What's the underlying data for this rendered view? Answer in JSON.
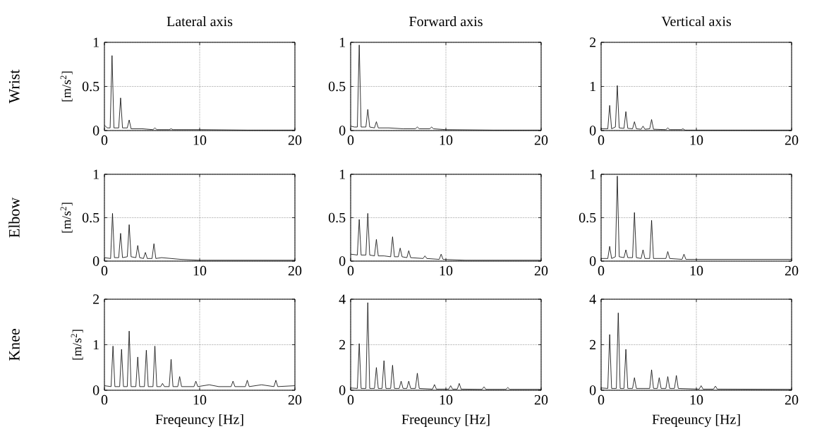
{
  "chart_data": [
    {
      "type": "line",
      "title": "Lateral axis",
      "annotations": [
        "Wrist"
      ],
      "ylabel": "[m/s$^{2}$]",
      "color": "#000000",
      "xlim": [
        0,
        20
      ],
      "xticks": [
        0,
        10,
        20
      ],
      "ylim": [
        0,
        1
      ],
      "yticks": [
        0,
        0.5,
        1
      ],
      "grid": true,
      "x": [
        0,
        0.3,
        0.6,
        0.8,
        1.0,
        1.5,
        1.7,
        1.9,
        2.4,
        2.6,
        2.8,
        4,
        5.1,
        5.3,
        5.5,
        6.8,
        7,
        7.2,
        10,
        15,
        20
      ],
      "values": [
        0.06,
        0.03,
        0.03,
        0.85,
        0.03,
        0.03,
        0.37,
        0.03,
        0.03,
        0.12,
        0.02,
        0.02,
        0.01,
        0.03,
        0.01,
        0.01,
        0.02,
        0.01,
        0.01,
        0.005,
        0.005
      ]
    },
    {
      "type": "line",
      "title": "Forward axis",
      "color": "#000000",
      "xlim": [
        0,
        20
      ],
      "xticks": [
        0,
        10,
        20
      ],
      "ylim": [
        0,
        1
      ],
      "yticks": [
        0,
        0.5,
        1
      ],
      "grid": true,
      "x": [
        0,
        0.4,
        0.7,
        0.9,
        1.1,
        1.6,
        1.8,
        2.0,
        2.5,
        2.7,
        2.9,
        4,
        5.5,
        6.8,
        7,
        7.2,
        8.3,
        8.5,
        8.7,
        10,
        15,
        20
      ],
      "values": [
        0.05,
        0.04,
        0.04,
        0.97,
        0.04,
        0.04,
        0.24,
        0.04,
        0.03,
        0.1,
        0.03,
        0.03,
        0.02,
        0.02,
        0.04,
        0.02,
        0.02,
        0.04,
        0.02,
        0.01,
        0.005,
        0.005
      ]
    },
    {
      "type": "line",
      "title": "Vertical axis",
      "color": "#000000",
      "xlim": [
        0,
        20
      ],
      "xticks": [
        0,
        10,
        20
      ],
      "ylim": [
        0,
        2
      ],
      "yticks": [
        0,
        1,
        2
      ],
      "grid": true,
      "x": [
        0,
        0.7,
        0.9,
        1.1,
        1.5,
        1.7,
        1.9,
        2.4,
        2.6,
        2.8,
        3.3,
        3.5,
        3.7,
        4.2,
        4.4,
        4.6,
        5.1,
        5.3,
        5.5,
        6.8,
        7,
        7.2,
        8.4,
        8.6,
        8.8,
        10,
        15,
        20
      ],
      "values": [
        0.04,
        0.04,
        0.57,
        0.04,
        0.08,
        1.02,
        0.06,
        0.05,
        0.43,
        0.05,
        0.04,
        0.2,
        0.04,
        0.03,
        0.1,
        0.03,
        0.04,
        0.25,
        0.03,
        0.02,
        0.06,
        0.02,
        0.02,
        0.04,
        0.01,
        0.01,
        0.01,
        0.01
      ]
    },
    {
      "type": "line",
      "annotations": [
        "Elbow"
      ],
      "ylabel": "[m/s$^{2}$]",
      "color": "#000000",
      "xlim": [
        0,
        20
      ],
      "xticks": [
        0,
        10,
        20
      ],
      "ylim": [
        0,
        1
      ],
      "yticks": [
        0,
        0.5,
        1
      ],
      "grid": true,
      "x": [
        0,
        0.65,
        0.85,
        1.05,
        1.5,
        1.7,
        1.9,
        2.4,
        2.6,
        2.8,
        3.3,
        3.5,
        3.7,
        4.1,
        4.3,
        4.5,
        5.0,
        5.2,
        5.4,
        6,
        8,
        10,
        15,
        20
      ],
      "values": [
        0.04,
        0.03,
        0.55,
        0.04,
        0.04,
        0.32,
        0.04,
        0.05,
        0.42,
        0.05,
        0.04,
        0.18,
        0.04,
        0.03,
        0.1,
        0.03,
        0.03,
        0.2,
        0.03,
        0.04,
        0.02,
        0.01,
        0.01,
        0.01
      ]
    },
    {
      "type": "line",
      "color": "#000000",
      "xlim": [
        0,
        20
      ],
      "xticks": [
        0,
        10,
        20
      ],
      "ylim": [
        0,
        1
      ],
      "yticks": [
        0,
        0.5,
        1
      ],
      "grid": true,
      "x": [
        0,
        0.7,
        0.9,
        1.1,
        1.6,
        1.8,
        2.0,
        2.5,
        2.7,
        2.9,
        3.5,
        4.2,
        4.4,
        4.6,
        5.0,
        5.2,
        5.4,
        5.9,
        6.1,
        6.3,
        7.6,
        7.8,
        8.0,
        9.3,
        9.5,
        9.7,
        12,
        15,
        20
      ],
      "values": [
        0.08,
        0.07,
        0.48,
        0.07,
        0.07,
        0.55,
        0.07,
        0.06,
        0.25,
        0.06,
        0.06,
        0.05,
        0.28,
        0.05,
        0.05,
        0.15,
        0.05,
        0.04,
        0.12,
        0.04,
        0.03,
        0.06,
        0.03,
        0.02,
        0.08,
        0.02,
        0.01,
        0.01,
        0.01
      ]
    },
    {
      "type": "line",
      "color": "#000000",
      "xlim": [
        0,
        20
      ],
      "xticks": [
        0,
        10,
        20
      ],
      "ylim": [
        0,
        1
      ],
      "yticks": [
        0,
        0.5,
        1
      ],
      "grid": true,
      "x": [
        0,
        0.7,
        0.9,
        1.1,
        1.5,
        1.7,
        1.9,
        2.4,
        2.6,
        2.8,
        3.3,
        3.5,
        3.7,
        4.2,
        4.4,
        4.6,
        5.1,
        5.3,
        5.5,
        6.8,
        7.0,
        7.2,
        8.5,
        8.7,
        8.9,
        10,
        15,
        20
      ],
      "values": [
        0.03,
        0.03,
        0.17,
        0.03,
        0.05,
        0.98,
        0.05,
        0.04,
        0.13,
        0.04,
        0.04,
        0.56,
        0.04,
        0.03,
        0.13,
        0.03,
        0.03,
        0.47,
        0.03,
        0.03,
        0.11,
        0.03,
        0.02,
        0.08,
        0.02,
        0.02,
        0.02,
        0.02
      ]
    },
    {
      "type": "line",
      "annotations": [
        "Knee"
      ],
      "ylabel": "[m/s$^{2}$]",
      "xlabel": "Freqeuncy [Hz]",
      "color": "#000000",
      "xlim": [
        0,
        20
      ],
      "xticks": [
        0,
        10,
        20
      ],
      "ylim": [
        0,
        2
      ],
      "yticks": [
        0,
        1,
        2
      ],
      "grid": true,
      "x": [
        0,
        0.7,
        0.9,
        1.1,
        1.6,
        1.8,
        2.0,
        2.4,
        2.6,
        2.8,
        3.3,
        3.5,
        3.7,
        4.2,
        4.4,
        4.6,
        5.1,
        5.3,
        5.5,
        5.9,
        6.1,
        6.3,
        6.8,
        7.0,
        7.2,
        7.7,
        7.9,
        8.1,
        9.4,
        9.6,
        9.8,
        11,
        12,
        13.3,
        13.5,
        13.7,
        14.8,
        15,
        15.2,
        16.5,
        17.8,
        18,
        18.2,
        20
      ],
      "values": [
        0.1,
        0.08,
        0.97,
        0.08,
        0.08,
        0.9,
        0.08,
        0.08,
        1.3,
        0.08,
        0.08,
        0.73,
        0.08,
        0.08,
        0.88,
        0.08,
        0.08,
        0.97,
        0.08,
        0.08,
        0.15,
        0.08,
        0.08,
        0.68,
        0.08,
        0.08,
        0.3,
        0.08,
        0.08,
        0.2,
        0.08,
        0.12,
        0.08,
        0.08,
        0.2,
        0.08,
        0.08,
        0.22,
        0.08,
        0.12,
        0.08,
        0.22,
        0.08,
        0.1
      ]
    },
    {
      "type": "line",
      "xlabel": "Freqeuncy [Hz]",
      "color": "#000000",
      "xlim": [
        0,
        20
      ],
      "xticks": [
        0,
        10,
        20
      ],
      "ylim": [
        0,
        4
      ],
      "yticks": [
        0,
        2,
        4
      ],
      "grid": true,
      "x": [
        0,
        0.7,
        0.9,
        1.1,
        1.6,
        1.8,
        2.0,
        2.5,
        2.7,
        2.9,
        3.3,
        3.5,
        3.7,
        4.2,
        4.4,
        4.6,
        5.1,
        5.3,
        5.5,
        5.9,
        6.1,
        6.3,
        6.8,
        7.0,
        7.2,
        8.6,
        8.8,
        9.0,
        10.3,
        10.5,
        10.7,
        11.2,
        11.4,
        11.6,
        13.8,
        14,
        14.2,
        16.3,
        16.5,
        16.7,
        20
      ],
      "values": [
        0.1,
        0.08,
        2.05,
        0.08,
        0.08,
        3.85,
        0.08,
        0.08,
        1.0,
        0.08,
        0.08,
        1.3,
        0.08,
        0.08,
        1.1,
        0.08,
        0.08,
        0.4,
        0.08,
        0.08,
        0.4,
        0.08,
        0.08,
        0.75,
        0.08,
        0.05,
        0.25,
        0.05,
        0.05,
        0.2,
        0.05,
        0.05,
        0.3,
        0.05,
        0.04,
        0.15,
        0.04,
        0.04,
        0.12,
        0.04,
        0.04
      ]
    },
    {
      "type": "line",
      "xlabel": "Freqeuncy [Hz]",
      "color": "#000000",
      "xlim": [
        0,
        20
      ],
      "xticks": [
        0,
        10,
        20
      ],
      "ylim": [
        0,
        4
      ],
      "yticks": [
        0,
        2,
        4
      ],
      "grid": true,
      "x": [
        0,
        0.7,
        0.9,
        1.1,
        1.6,
        1.8,
        2.0,
        2.4,
        2.6,
        2.8,
        3.3,
        3.5,
        3.7,
        5.1,
        5.3,
        5.5,
        5.9,
        6.1,
        6.3,
        6.8,
        7.0,
        7.2,
        7.7,
        7.9,
        8.1,
        10.3,
        10.5,
        10.7,
        11.8,
        12,
        12.2,
        20
      ],
      "values": [
        0.1,
        0.08,
        2.45,
        0.08,
        0.08,
        3.4,
        0.08,
        0.08,
        1.8,
        0.08,
        0.08,
        0.55,
        0.08,
        0.08,
        0.9,
        0.08,
        0.08,
        0.55,
        0.08,
        0.08,
        0.6,
        0.08,
        0.08,
        0.65,
        0.08,
        0.05,
        0.2,
        0.05,
        0.05,
        0.18,
        0.05,
        0.04
      ]
    }
  ]
}
